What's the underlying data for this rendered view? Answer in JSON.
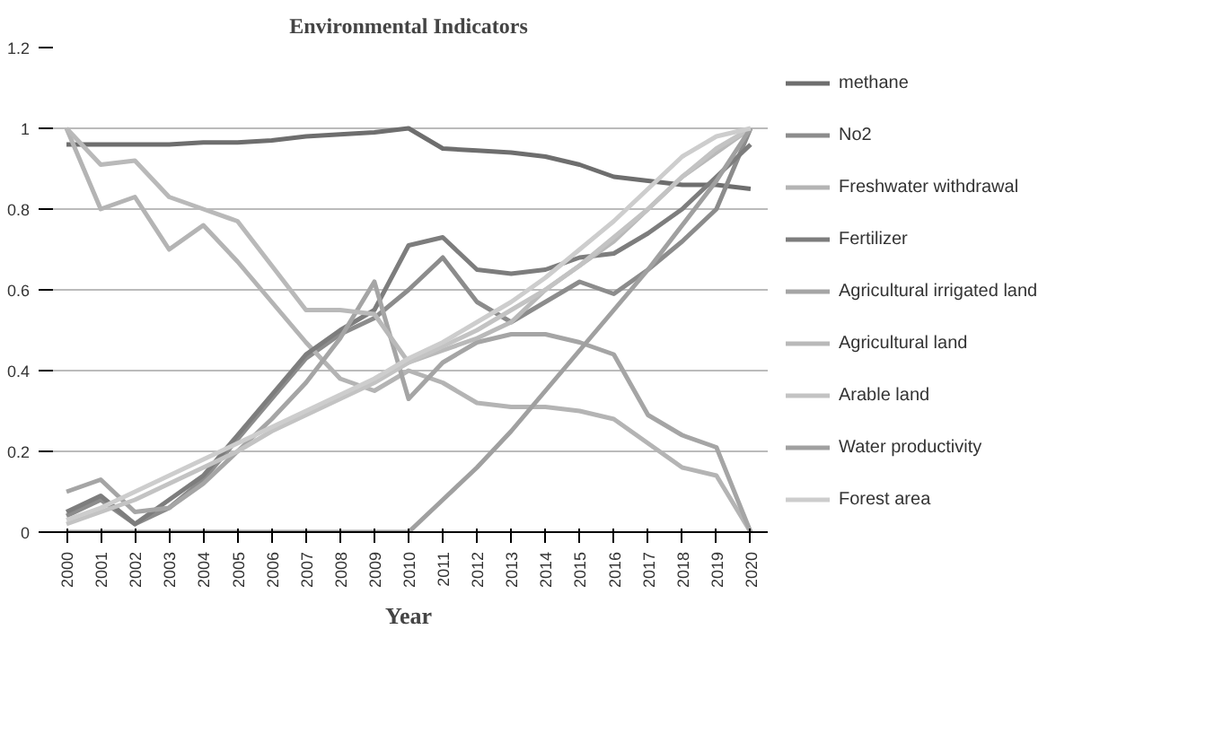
{
  "chart_data": {
    "type": "line",
    "title": "Environmental Indicators",
    "xlabel": "Year",
    "categories": [
      "2000",
      "2001",
      "2002",
      "2003",
      "2004",
      "2005",
      "2006",
      "2007",
      "2008",
      "2009",
      "2010",
      "2011",
      "2012",
      "2013",
      "2014",
      "2015",
      "2016",
      "2017",
      "2018",
      "2019",
      "2020"
    ],
    "ylim": [
      0,
      1.2
    ],
    "yticks": [
      {
        "value": 0,
        "label": "0"
      },
      {
        "value": 0.2,
        "label": "0.2"
      },
      {
        "value": 0.4,
        "label": "0.4"
      },
      {
        "value": 0.6,
        "label": "0.6"
      },
      {
        "value": 0.8,
        "label": "0.8"
      },
      {
        "value": 1,
        "label": "1"
      },
      {
        "value": 1.2,
        "label": "1.2"
      }
    ],
    "grid": "y",
    "legend": "right",
    "line_style": "solid",
    "marker": "none",
    "series": [
      {
        "name": "methane",
        "color": "#6e6e6e",
        "values": [
          0.96,
          0.96,
          0.96,
          0.96,
          0.965,
          0.965,
          0.97,
          0.98,
          0.985,
          0.99,
          1.0,
          0.95,
          0.945,
          0.94,
          0.93,
          0.91,
          0.88,
          0.87,
          0.86,
          0.86,
          0.85
        ]
      },
      {
        "name": "No2",
        "color": "#8c8c8c",
        "values": [
          0.04,
          0.08,
          0.02,
          0.06,
          0.13,
          0.23,
          0.33,
          0.43,
          0.49,
          0.53,
          0.6,
          0.68,
          0.57,
          0.52,
          0.57,
          0.62,
          0.59,
          0.65,
          0.72,
          0.8,
          1.0
        ]
      },
      {
        "name": "Freshwater withdrawal",
        "color": "#b4b4b4",
        "values": [
          1.0,
          0.8,
          0.83,
          0.7,
          0.76,
          0.67,
          0.57,
          0.47,
          0.38,
          0.35,
          0.4,
          0.37,
          0.32,
          0.31,
          0.31,
          0.3,
          0.28,
          0.22,
          0.16,
          0.14,
          0.0
        ]
      },
      {
        "name": "Fertilizer",
        "color": "#7d7d7d",
        "values": [
          0.05,
          0.09,
          0.02,
          0.08,
          0.14,
          0.24,
          0.34,
          0.44,
          0.5,
          0.55,
          0.71,
          0.73,
          0.65,
          0.64,
          0.65,
          0.68,
          0.69,
          0.74,
          0.8,
          0.88,
          0.96
        ]
      },
      {
        "name": "Agricultural irrigated land",
        "color": "#a5a5a5",
        "values": [
          0.1,
          0.13,
          0.05,
          0.06,
          0.12,
          0.2,
          0.28,
          0.37,
          0.48,
          0.62,
          0.33,
          0.42,
          0.47,
          0.49,
          0.49,
          0.47,
          0.44,
          0.29,
          0.24,
          0.21,
          0.0
        ]
      },
      {
        "name": "Agricultural land",
        "color": "#b9b9b9",
        "values": [
          1.0,
          0.91,
          0.92,
          0.83,
          0.8,
          0.77,
          0.66,
          0.55,
          0.55,
          0.54,
          0.42,
          0.45,
          0.48,
          0.52,
          0.6,
          0.66,
          0.72,
          0.8,
          0.88,
          0.94,
          1.0
        ]
      },
      {
        "name": "Arable land",
        "color": "#c3c3c3",
        "values": [
          0.02,
          0.05,
          0.08,
          0.12,
          0.16,
          0.2,
          0.25,
          0.29,
          0.33,
          0.37,
          0.42,
          0.46,
          0.5,
          0.55,
          0.6,
          0.66,
          0.73,
          0.8,
          0.88,
          0.95,
          1.0
        ]
      },
      {
        "name": "Water productivity",
        "color": "#a0a0a0",
        "values": [
          0.0,
          0.0,
          0.0,
          0.0,
          0.0,
          0.0,
          0.0,
          0.0,
          0.0,
          0.0,
          0.0,
          0.08,
          0.16,
          0.25,
          0.35,
          0.45,
          0.55,
          0.65,
          0.76,
          0.87,
          1.0
        ]
      },
      {
        "name": "Forest area",
        "color": "#cdcdcd",
        "values": [
          0.03,
          0.06,
          0.1,
          0.14,
          0.18,
          0.22,
          0.26,
          0.3,
          0.34,
          0.38,
          0.43,
          0.47,
          0.52,
          0.57,
          0.63,
          0.7,
          0.77,
          0.85,
          0.93,
          0.98,
          1.0
        ]
      }
    ]
  }
}
